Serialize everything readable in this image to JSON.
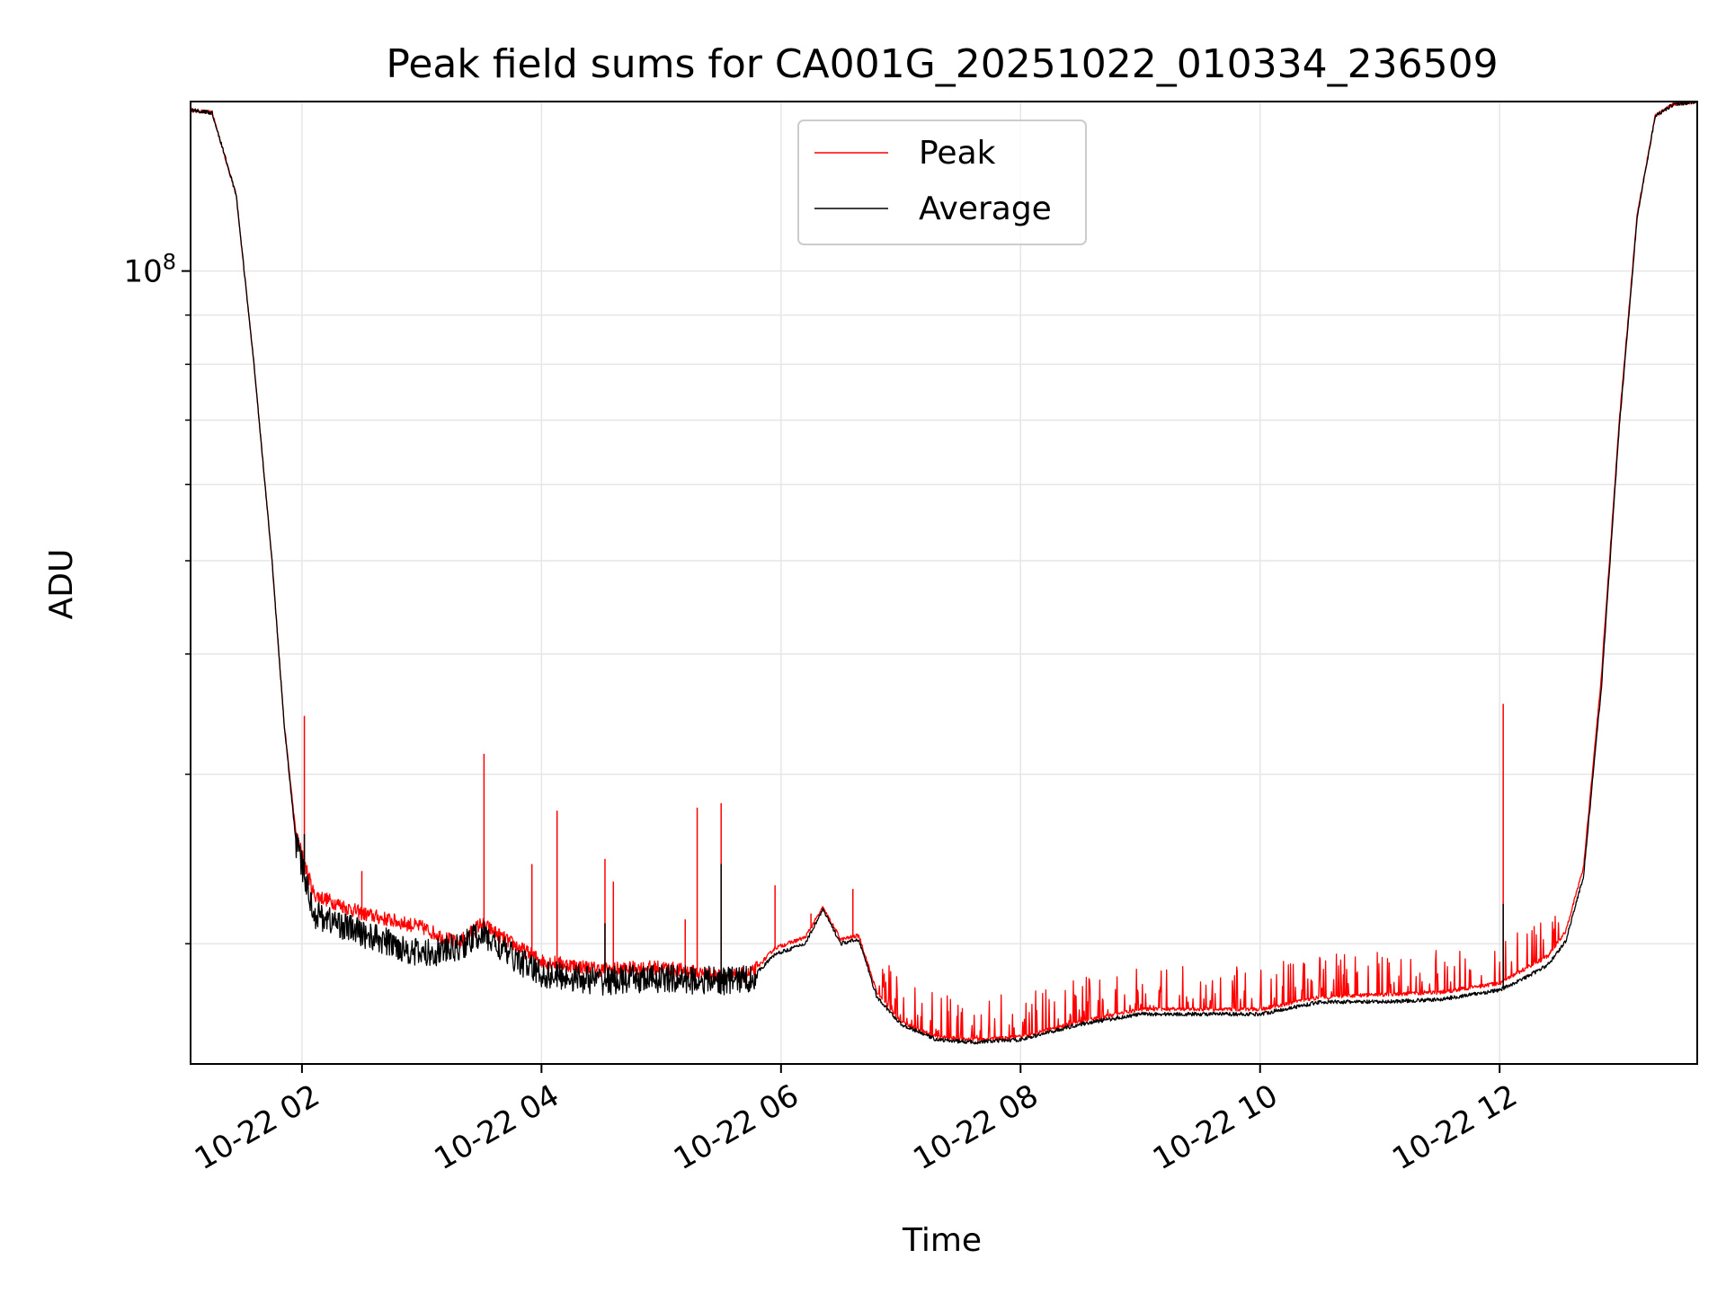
{
  "chart_data": {
    "type": "line",
    "title": "Peak field sums for CA001G_20251022_010334_236509",
    "xlabel": "Time",
    "ylabel": "ADU",
    "yscale": "log",
    "xlim_hours": [
      1.07,
      13.65
    ],
    "ylim": [
      15000000,
      150000000
    ],
    "grid": true,
    "legend_location": "upper center",
    "x_ticks": [
      {
        "hour": 2,
        "label": "10-22 02"
      },
      {
        "hour": 4,
        "label": "10-22 04"
      },
      {
        "hour": 6,
        "label": "10-22 06"
      },
      {
        "hour": 8,
        "label": "10-22 08"
      },
      {
        "hour": 10,
        "label": "10-22 10"
      },
      {
        "hour": 12,
        "label": "10-22 12"
      }
    ],
    "y_major_ticks": [
      {
        "value": 100000000,
        "base": "10",
        "exp": "8"
      }
    ],
    "y_minor_ticks": [
      20000000,
      30000000,
      40000000,
      50000000,
      60000000,
      70000000,
      80000000,
      90000000
    ],
    "series": [
      {
        "name": "Peak",
        "color": "#ff0000",
        "baseline": [
          [
            1.07,
            147000000
          ],
          [
            1.25,
            146000000
          ],
          [
            1.45,
            120000000
          ],
          [
            1.6,
            80000000
          ],
          [
            1.75,
            50000000
          ],
          [
            1.85,
            34000000
          ],
          [
            1.95,
            26000000
          ],
          [
            2.1,
            22500000
          ],
          [
            2.5,
            21500000
          ],
          [
            3.0,
            20800000
          ],
          [
            3.3,
            20000000
          ],
          [
            3.5,
            21000000
          ],
          [
            3.7,
            20200000
          ],
          [
            4.0,
            19200000
          ],
          [
            4.5,
            18800000
          ],
          [
            5.0,
            18900000
          ],
          [
            5.5,
            18500000
          ],
          [
            5.75,
            18600000
          ],
          [
            5.95,
            19800000
          ],
          [
            6.2,
            20300000
          ],
          [
            6.35,
            21800000
          ],
          [
            6.5,
            20200000
          ],
          [
            6.65,
            20400000
          ],
          [
            6.8,
            17800000
          ],
          [
            7.0,
            16600000
          ],
          [
            7.3,
            16000000
          ],
          [
            7.6,
            15900000
          ],
          [
            8.0,
            16000000
          ],
          [
            8.5,
            16600000
          ],
          [
            9.0,
            17100000
          ],
          [
            9.5,
            17100000
          ],
          [
            10.0,
            17100000
          ],
          [
            10.5,
            17600000
          ],
          [
            11.0,
            17700000
          ],
          [
            11.5,
            17800000
          ],
          [
            12.0,
            18200000
          ],
          [
            12.2,
            18800000
          ],
          [
            12.4,
            19400000
          ],
          [
            12.55,
            20600000
          ],
          [
            12.7,
            24000000
          ],
          [
            12.85,
            38000000
          ],
          [
            13.0,
            70000000
          ],
          [
            13.15,
            115000000
          ],
          [
            13.3,
            145000000
          ],
          [
            13.45,
            149000000
          ],
          [
            13.65,
            150000000
          ]
        ],
        "spikes": [
          [
            2.02,
            34500000
          ],
          [
            3.52,
            31500000
          ],
          [
            4.13,
            27500000
          ],
          [
            4.53,
            24500000
          ],
          [
            5.3,
            27700000
          ],
          [
            5.5,
            28000000
          ],
          [
            5.95,
            23000000
          ],
          [
            6.6,
            22800000
          ],
          [
            12.03,
            35500000
          ],
          [
            2.5,
            23800000
          ],
          [
            3.92,
            24200000
          ],
          [
            4.6,
            23200000
          ],
          [
            5.2,
            21200000
          ],
          [
            6.25,
            21500000
          ]
        ]
      },
      {
        "name": "Average",
        "color": "#000000",
        "baseline": [
          [
            1.07,
            147000000
          ],
          [
            1.25,
            146000000
          ],
          [
            1.45,
            120000000
          ],
          [
            1.6,
            80000000
          ],
          [
            1.75,
            50000000
          ],
          [
            1.85,
            34000000
          ],
          [
            1.95,
            25500000
          ],
          [
            2.1,
            21500000
          ],
          [
            2.5,
            20500000
          ],
          [
            3.0,
            19500000
          ],
          [
            3.3,
            19800000
          ],
          [
            3.5,
            20500000
          ],
          [
            3.7,
            19600000
          ],
          [
            4.0,
            18600000
          ],
          [
            4.5,
            18300000
          ],
          [
            5.0,
            18400000
          ],
          [
            5.5,
            18300000
          ],
          [
            5.75,
            18400000
          ],
          [
            5.95,
            19500000
          ],
          [
            6.2,
            20000000
          ],
          [
            6.35,
            21700000
          ],
          [
            6.5,
            20000000
          ],
          [
            6.65,
            20200000
          ],
          [
            6.8,
            17600000
          ],
          [
            7.0,
            16500000
          ],
          [
            7.3,
            15900000
          ],
          [
            7.6,
            15800000
          ],
          [
            8.0,
            15900000
          ],
          [
            8.5,
            16500000
          ],
          [
            9.0,
            16900000
          ],
          [
            9.5,
            16900000
          ],
          [
            10.0,
            16900000
          ],
          [
            10.5,
            17400000
          ],
          [
            11.0,
            17400000
          ],
          [
            11.5,
            17500000
          ],
          [
            12.0,
            17900000
          ],
          [
            12.2,
            18400000
          ],
          [
            12.4,
            19000000
          ],
          [
            12.55,
            20100000
          ],
          [
            12.7,
            23500000
          ],
          [
            12.85,
            37000000
          ],
          [
            13.0,
            69000000
          ],
          [
            13.15,
            114000000
          ],
          [
            13.3,
            145000000
          ],
          [
            13.45,
            149000000
          ],
          [
            13.65,
            150000000
          ]
        ],
        "spikes": [
          [
            2.02,
            26000000
          ],
          [
            5.5,
            24200000
          ],
          [
            12.03,
            22000000
          ],
          [
            4.53,
            21000000
          ]
        ]
      }
    ]
  }
}
